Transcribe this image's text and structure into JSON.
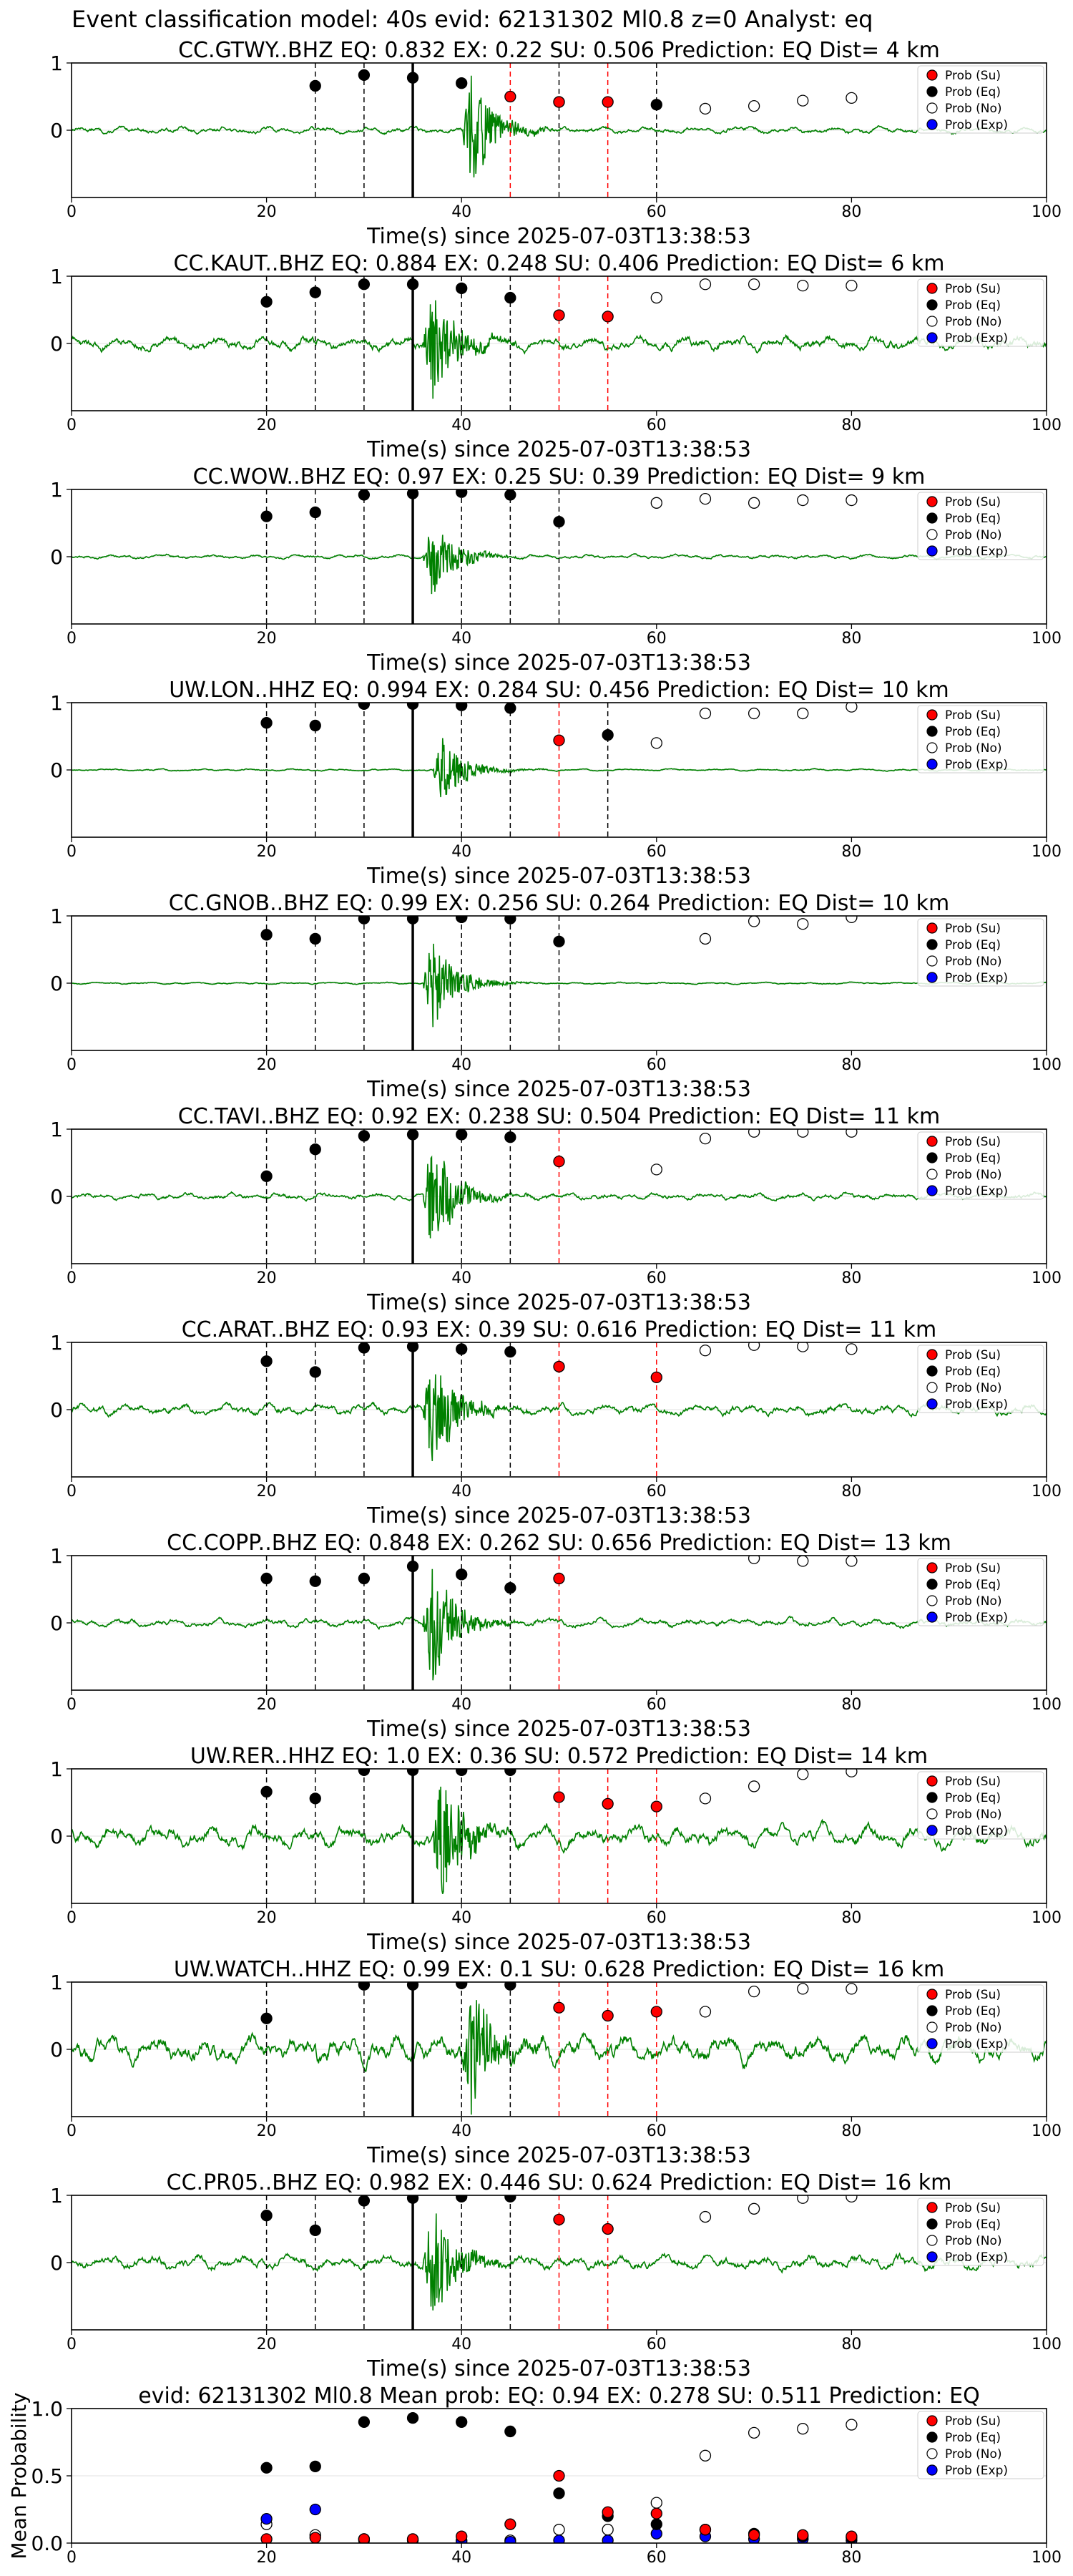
{
  "figure_title": "Event classification model: 40s evid: 62131302 Ml0.8 z=0 Analyst: eq",
  "xlabel": "Time(s) since 2025-07-03T13:38:53",
  "legend": [
    "Prob (Su)",
    "Prob (Eq)",
    "Prob (No)",
    "Prob (Exp)"
  ],
  "colors": {
    "su": "#ff0000",
    "eq": "#000000",
    "no": "#ffffff",
    "exp": "#0000ff",
    "trace": "#008000",
    "red_line": "#ff0000",
    "dash_line": "#000000"
  },
  "chart_data": [
    {
      "type": "line",
      "title": "CC.GTWY..BHZ   EQ: 0.832  EX: 0.22  SU: 0.506   Prediction: EQ    Dist= 4 km",
      "xlim": [
        0,
        100
      ],
      "ylim": [
        -1,
        1
      ],
      "xticks": [
        0,
        20,
        40,
        60,
        80,
        100
      ],
      "yticks": [
        1,
        0
      ],
      "p_pick": 35,
      "onset": 40,
      "amp": 0.85,
      "noise": 0.05,
      "su_x": [
        45,
        50,
        55
      ],
      "su_y": [
        0.5,
        0.42,
        0.42
      ],
      "eq_x": [
        25,
        30,
        35,
        40,
        50,
        60
      ],
      "eq_y": [
        0.66,
        0.82,
        0.78,
        0.7,
        0.42,
        0.38
      ],
      "no_x": [
        65,
        70,
        75,
        80
      ],
      "no_y": [
        0.32,
        0.36,
        0.44,
        0.48
      ],
      "exp_x": [],
      "exp_y": [],
      "red_lines": [
        45,
        55
      ],
      "dash_lines": [
        25,
        30,
        50,
        60
      ]
    },
    {
      "type": "line",
      "title": "CC.KAUT..BHZ   EQ: 0.884  EX: 0.248  SU: 0.406   Prediction: EQ    Dist= 6 km",
      "xlim": [
        0,
        100
      ],
      "ylim": [
        -1,
        1
      ],
      "xticks": [
        0,
        20,
        40,
        60,
        80,
        100
      ],
      "yticks": [
        1,
        0
      ],
      "p_pick": 35,
      "onset": 36,
      "amp": 0.85,
      "noise": 0.1,
      "su_x": [
        50,
        55
      ],
      "su_y": [
        0.42,
        0.4
      ],
      "eq_x": [
        20,
        25,
        30,
        35,
        40,
        45
      ],
      "eq_y": [
        0.62,
        0.76,
        0.88,
        0.88,
        0.82,
        0.68
      ],
      "no_x": [
        60,
        65,
        70,
        75,
        80
      ],
      "no_y": [
        0.68,
        0.88,
        0.88,
        0.86,
        0.86
      ],
      "exp_x": [],
      "exp_y": [],
      "red_lines": [
        50,
        55
      ],
      "dash_lines": [
        20,
        25,
        30,
        40,
        45
      ]
    },
    {
      "type": "line",
      "title": "CC.WOW..BHZ   EQ: 0.97  EX: 0.25  SU: 0.39   Prediction: EQ    Dist= 9 km",
      "xlim": [
        0,
        100
      ],
      "ylim": [
        -1,
        1
      ],
      "xticks": [
        0,
        20,
        40,
        60,
        80,
        100
      ],
      "yticks": [
        1,
        0
      ],
      "p_pick": 35,
      "onset": 36,
      "amp": 0.6,
      "noise": 0.03,
      "su_x": [],
      "su_y": [],
      "eq_x": [
        20,
        25,
        30,
        35,
        40,
        45,
        50
      ],
      "eq_y": [
        0.6,
        0.66,
        0.92,
        0.94,
        0.96,
        0.92,
        0.52
      ],
      "no_x": [
        60,
        65,
        70,
        75,
        80
      ],
      "no_y": [
        0.8,
        0.86,
        0.8,
        0.84,
        0.84
      ],
      "exp_x": [],
      "exp_y": [],
      "red_lines": [],
      "dash_lines": [
        20,
        25,
        30,
        40,
        45,
        50
      ]
    },
    {
      "type": "line",
      "title": "UW.LON..HHZ   EQ: 0.994  EX: 0.284  SU: 0.456   Prediction: EQ    Dist= 10 km",
      "xlim": [
        0,
        100
      ],
      "ylim": [
        -1,
        1
      ],
      "xticks": [
        0,
        20,
        40,
        60,
        80,
        100
      ],
      "yticks": [
        1,
        0
      ],
      "p_pick": 35,
      "onset": 37,
      "amp": 0.5,
      "noise": 0.015,
      "su_x": [
        50
      ],
      "su_y": [
        0.44
      ],
      "eq_x": [
        20,
        25,
        30,
        35,
        40,
        45,
        55
      ],
      "eq_y": [
        0.7,
        0.66,
        0.98,
        0.98,
        0.96,
        0.92,
        0.52
      ],
      "no_x": [
        60,
        65,
        70,
        75,
        80
      ],
      "no_y": [
        0.4,
        0.84,
        0.84,
        0.84,
        0.94
      ],
      "exp_x": [],
      "exp_y": [],
      "red_lines": [
        50
      ],
      "dash_lines": [
        20,
        25,
        30,
        40,
        45,
        55
      ]
    },
    {
      "type": "line",
      "title": "CC.GNOB..BHZ   EQ: 0.99  EX: 0.256  SU: 0.264   Prediction: EQ    Dist= 10 km",
      "xlim": [
        0,
        100
      ],
      "ylim": [
        -1,
        1
      ],
      "xticks": [
        0,
        20,
        40,
        60,
        80,
        100
      ],
      "yticks": [
        1,
        0
      ],
      "p_pick": 35,
      "onset": 36,
      "amp": 0.75,
      "noise": 0.015,
      "su_x": [],
      "su_y": [],
      "eq_x": [
        20,
        25,
        30,
        35,
        40,
        45,
        50
      ],
      "eq_y": [
        0.72,
        0.66,
        0.96,
        0.96,
        0.98,
        0.96,
        0.62
      ],
      "no_x": [
        65,
        70,
        75,
        80
      ],
      "no_y": [
        0.66,
        0.92,
        0.88,
        0.98
      ],
      "exp_x": [
        40
      ],
      "exp_y": [
        0.98
      ],
      "red_lines": [],
      "dash_lines": [
        20,
        25,
        30,
        40,
        45,
        50
      ]
    },
    {
      "type": "line",
      "title": "CC.TAVI..BHZ   EQ: 0.92  EX: 0.238  SU: 0.504   Prediction: EQ    Dist= 11 km",
      "xlim": [
        0,
        100
      ],
      "ylim": [
        -1,
        1
      ],
      "xticks": [
        0,
        20,
        40,
        60,
        80,
        100
      ],
      "yticks": [
        1,
        0
      ],
      "p_pick": 35,
      "onset": 36,
      "amp": 0.9,
      "noise": 0.05,
      "su_x": [
        50
      ],
      "su_y": [
        0.52
      ],
      "eq_x": [
        20,
        25,
        30,
        35,
        40,
        45
      ],
      "eq_y": [
        0.3,
        0.7,
        0.9,
        0.92,
        0.92,
        0.88
      ],
      "no_x": [
        60,
        65,
        70,
        75,
        80
      ],
      "no_y": [
        0.4,
        0.86,
        0.96,
        0.96,
        0.96
      ],
      "exp_x": [],
      "exp_y": [],
      "red_lines": [
        50
      ],
      "dash_lines": [
        20,
        25,
        30,
        40,
        45
      ]
    },
    {
      "type": "line",
      "title": "CC.ARAT..BHZ   EQ: 0.93  EX: 0.39  SU: 0.616   Prediction: EQ    Dist= 11 km",
      "xlim": [
        0,
        100
      ],
      "ylim": [
        -1,
        1
      ],
      "xticks": [
        0,
        20,
        40,
        60,
        80,
        100
      ],
      "yticks": [
        1,
        0
      ],
      "p_pick": 35,
      "onset": 36,
      "amp": 0.9,
      "noise": 0.08,
      "su_x": [
        50,
        60
      ],
      "su_y": [
        0.64,
        0.48
      ],
      "eq_x": [
        20,
        25,
        30,
        35,
        40,
        45
      ],
      "eq_y": [
        0.72,
        0.56,
        0.92,
        0.94,
        0.9,
        0.86
      ],
      "no_x": [
        65,
        70,
        75,
        80
      ],
      "no_y": [
        0.88,
        0.96,
        0.94,
        0.9
      ],
      "exp_x": [],
      "exp_y": [],
      "red_lines": [
        50,
        60
      ],
      "dash_lines": [
        20,
        25,
        30,
        40,
        45
      ]
    },
    {
      "type": "line",
      "title": "CC.COPP..BHZ   EQ: 0.848  EX: 0.262  SU: 0.656   Prediction: EQ    Dist= 13 km",
      "xlim": [
        0,
        100
      ],
      "ylim": [
        -1,
        1
      ],
      "xticks": [
        0,
        20,
        40,
        60,
        80,
        100
      ],
      "yticks": [
        1,
        0
      ],
      "p_pick": 35,
      "onset": 36,
      "amp": 0.95,
      "noise": 0.06,
      "su_x": [
        50
      ],
      "su_y": [
        0.66
      ],
      "eq_x": [
        20,
        25,
        30,
        35,
        40,
        45
      ],
      "eq_y": [
        0.66,
        0.62,
        0.66,
        0.84,
        0.72,
        0.52
      ],
      "no_x": [
        70,
        75,
        80
      ],
      "no_y": [
        0.96,
        0.92,
        0.92
      ],
      "exp_x": [],
      "exp_y": [],
      "red_lines": [
        50
      ],
      "dash_lines": [
        20,
        25,
        30,
        40,
        45
      ]
    },
    {
      "type": "line",
      "title": "UW.RER..HHZ   EQ: 1.0  EX: 0.36  SU: 0.572   Prediction: EQ    Dist= 14 km",
      "xlim": [
        0,
        100
      ],
      "ylim": [
        -1,
        1
      ],
      "xticks": [
        0,
        20,
        40,
        60,
        80,
        100
      ],
      "yticks": [
        1,
        0
      ],
      "p_pick": 35,
      "onset": 37,
      "amp": 0.95,
      "noise": 0.15,
      "su_x": [
        50,
        55,
        60
      ],
      "su_y": [
        0.58,
        0.48,
        0.44
      ],
      "eq_x": [
        20,
        25,
        30,
        35,
        40,
        45
      ],
      "eq_y": [
        0.66,
        0.56,
        0.98,
        0.98,
        0.98,
        0.98
      ],
      "no_x": [
        65,
        70,
        75,
        80
      ],
      "no_y": [
        0.56,
        0.74,
        0.92,
        0.96
      ],
      "exp_x": [],
      "exp_y": [],
      "red_lines": [
        50,
        55,
        60
      ],
      "dash_lines": [
        20,
        25,
        30,
        40,
        45
      ]
    },
    {
      "type": "line",
      "title": "UW.WATCH..HHZ   EQ: 0.99  EX: 0.1  SU: 0.628   Prediction: EQ    Dist= 16 km",
      "xlim": [
        0,
        100
      ],
      "ylim": [
        -1,
        1
      ],
      "xticks": [
        0,
        20,
        40,
        60,
        80,
        100
      ],
      "yticks": [
        1,
        0
      ],
      "p_pick": 35,
      "onset": 40,
      "amp": 0.9,
      "noise": 0.2,
      "su_x": [
        50,
        55,
        60
      ],
      "su_y": [
        0.62,
        0.5,
        0.56
      ],
      "eq_x": [
        20,
        30,
        35,
        40,
        45
      ],
      "eq_y": [
        0.46,
        0.96,
        0.96,
        0.98,
        0.96
      ],
      "no_x": [
        65,
        70,
        75,
        80
      ],
      "no_y": [
        0.56,
        0.86,
        0.9,
        0.9
      ],
      "exp_x": [],
      "exp_y": [],
      "red_lines": [
        50,
        55,
        60
      ],
      "dash_lines": [
        20,
        30,
        40,
        45
      ]
    },
    {
      "type": "line",
      "title": "CC.PR05..BHZ   EQ: 0.982  EX: 0.446  SU: 0.624   Prediction: EQ    Dist= 16 km",
      "xlim": [
        0,
        100
      ],
      "ylim": [
        -1,
        1
      ],
      "xticks": [
        0,
        20,
        40,
        60,
        80,
        100
      ],
      "yticks": [
        1,
        0
      ],
      "p_pick": 35,
      "onset": 36,
      "amp": 0.9,
      "noise": 0.1,
      "su_x": [
        50,
        55
      ],
      "su_y": [
        0.64,
        0.5
      ],
      "eq_x": [
        20,
        25,
        30,
        35,
        40,
        45
      ],
      "eq_y": [
        0.7,
        0.48,
        0.92,
        0.96,
        0.98,
        0.98
      ],
      "no_x": [
        65,
        70,
        75,
        80
      ],
      "no_y": [
        0.68,
        0.8,
        0.96,
        0.98
      ],
      "exp_x": [],
      "exp_y": [],
      "red_lines": [
        50,
        55
      ],
      "dash_lines": [
        20,
        25,
        30,
        40,
        45
      ]
    },
    {
      "type": "scatter",
      "title": "evid: 62131302  Ml0.8   Mean prob:   EQ: 0.94  EX: 0.278  SU: 0.511   Prediction: EQ",
      "ylabel": "Mean Probability",
      "xlim": [
        0,
        100
      ],
      "ylim": [
        0,
        1
      ],
      "xticks": [
        0,
        20,
        40,
        60,
        80,
        100
      ],
      "yticks": [
        0,
        0.5,
        1
      ],
      "ytick_labels": [
        "0.0",
        "0.5",
        "1.0"
      ],
      "su_x": [
        20,
        25,
        30,
        35,
        40,
        45,
        50,
        55,
        60,
        65,
        70,
        75,
        80
      ],
      "su_y": [
        0.03,
        0.04,
        0.03,
        0.03,
        0.05,
        0.14,
        0.5,
        0.23,
        0.22,
        0.1,
        0.06,
        0.06,
        0.05
      ],
      "eq_x": [
        20,
        25,
        30,
        35,
        40,
        45,
        50,
        55,
        60,
        65,
        70,
        75,
        80
      ],
      "eq_y": [
        0.56,
        0.57,
        0.9,
        0.93,
        0.9,
        0.83,
        0.37,
        0.2,
        0.14,
        0.1,
        0.07,
        0.05,
        0.04
      ],
      "no_x": [
        20,
        25,
        30,
        35,
        40,
        45,
        50,
        55,
        60,
        65,
        70,
        75,
        80
      ],
      "no_y": [
        0.14,
        0.06,
        0.02,
        0.02,
        0.02,
        0.02,
        0.1,
        0.1,
        0.3,
        0.65,
        0.82,
        0.85,
        0.88
      ],
      "exp_x": [
        20,
        25,
        30,
        35,
        40,
        45,
        50,
        55,
        60,
        65,
        70,
        75,
        80
      ],
      "exp_y": [
        0.18,
        0.25,
        0.03,
        0.02,
        0.01,
        0.01,
        0.02,
        0.02,
        0.07,
        0.05,
        0.03,
        0.03,
        0.02
      ]
    }
  ]
}
